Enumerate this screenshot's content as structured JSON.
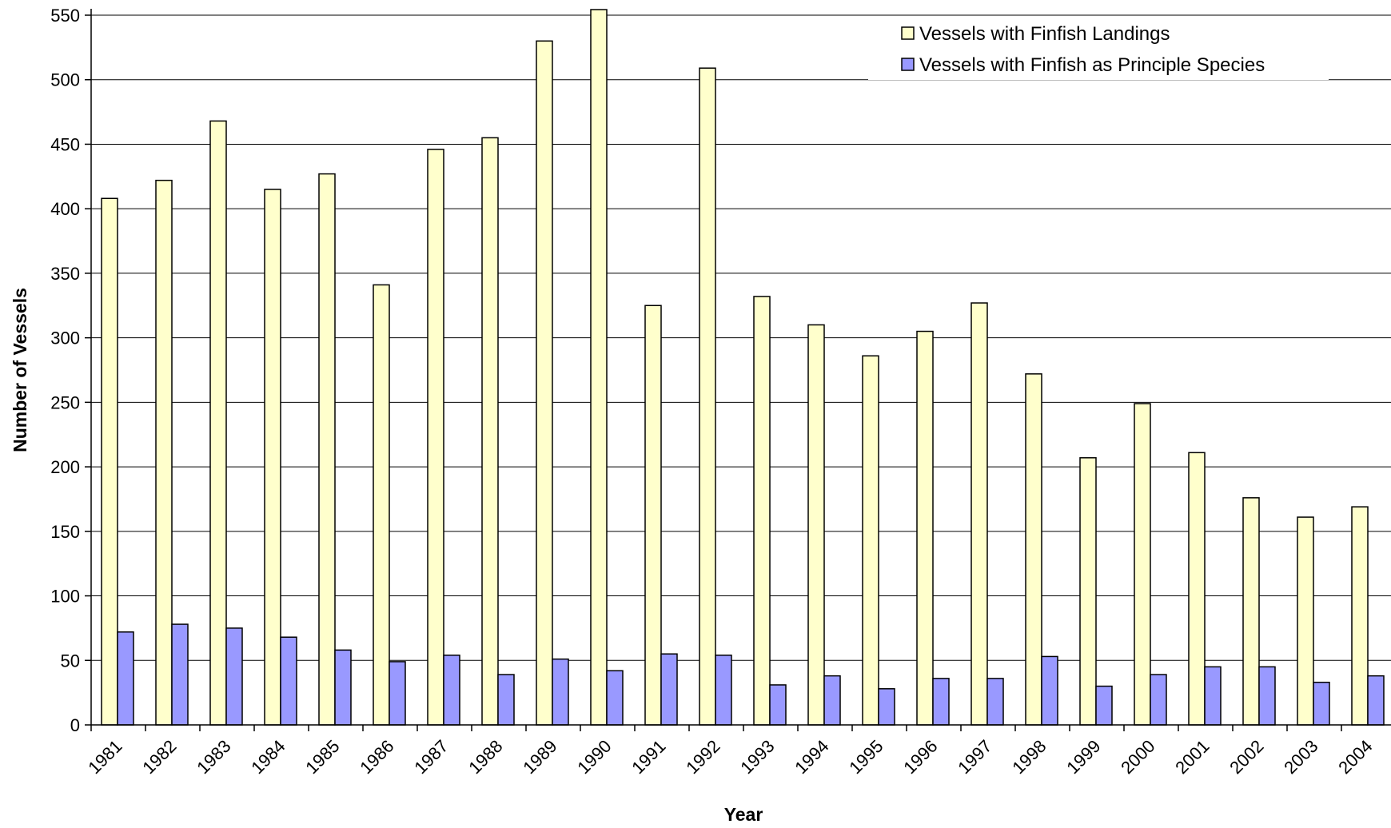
{
  "chart_data": {
    "type": "bar",
    "xlabel": "Year",
    "ylabel": "Number of Vessels",
    "ylim": [
      0,
      550
    ],
    "yticks": [
      0,
      50,
      100,
      150,
      200,
      250,
      300,
      350,
      400,
      450,
      500,
      550
    ],
    "grid": true,
    "legend_position": "top-right",
    "categories": [
      "1981",
      "1982",
      "1983",
      "1984",
      "1985",
      "1986",
      "1987",
      "1988",
      "1989",
      "1990",
      "1991",
      "1992",
      "1993",
      "1994",
      "1995",
      "1996",
      "1997",
      "1998",
      "1999",
      "2000",
      "2001",
      "2002",
      "2003",
      "2004"
    ],
    "series": [
      {
        "name": "Vessels with Finfish Landings",
        "color": "#FFFFCC",
        "values": [
          408,
          422,
          468,
          415,
          427,
          341,
          446,
          455,
          530,
          560,
          325,
          509,
          332,
          310,
          286,
          305,
          327,
          272,
          207,
          249,
          211,
          176,
          161,
          169
        ]
      },
      {
        "name": "Vessels with Finfish as Principle Species",
        "color": "#9999FF",
        "values": [
          72,
          78,
          75,
          68,
          58,
          49,
          54,
          39,
          51,
          42,
          55,
          54,
          31,
          38,
          28,
          36,
          36,
          53,
          30,
          39,
          45,
          45,
          33,
          38
        ]
      }
    ]
  }
}
